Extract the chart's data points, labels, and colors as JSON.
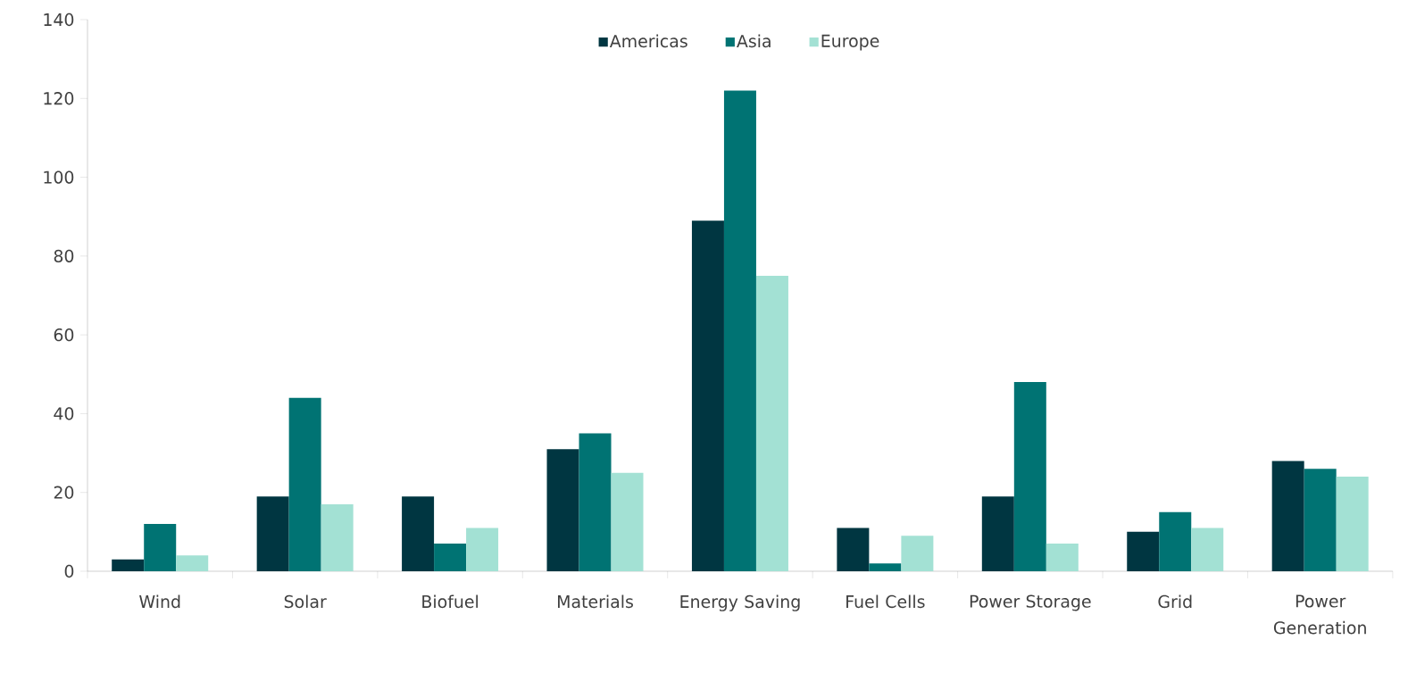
{
  "chart_data": {
    "type": "bar",
    "categories": [
      "Wind",
      "Solar",
      "Biofuel",
      "Materials",
      "Energy Saving",
      "Fuel Cells",
      "Power Storage",
      "Grid",
      "Power Generation"
    ],
    "series": [
      {
        "name": "Americas",
        "color": "#003641",
        "values": [
          3,
          19,
          19,
          31,
          89,
          11,
          19,
          10,
          28
        ]
      },
      {
        "name": "Asia",
        "color": "#007373",
        "values": [
          12,
          44,
          7,
          35,
          122,
          2,
          48,
          15,
          26
        ]
      },
      {
        "name": "Europe",
        "color": "#a3e1d4",
        "values": [
          4,
          17,
          11,
          25,
          75,
          9,
          7,
          11,
          24
        ]
      }
    ],
    "ylim": [
      0,
      140
    ],
    "yticks": [
      0,
      20,
      40,
      60,
      80,
      100,
      120,
      140
    ],
    "grid": false,
    "legend": "top"
  }
}
